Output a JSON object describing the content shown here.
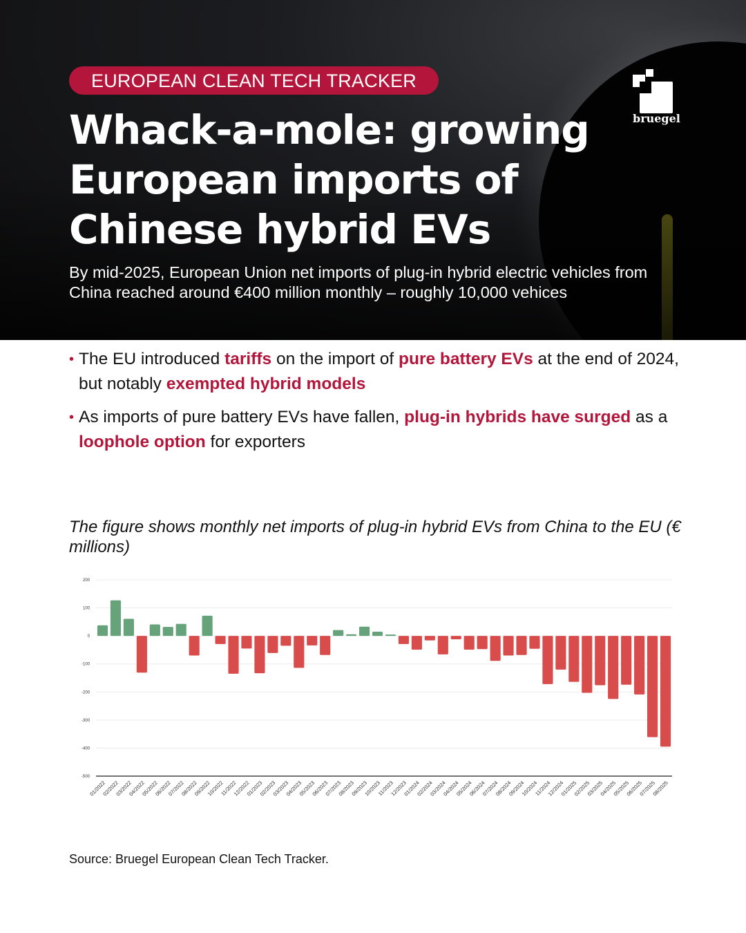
{
  "header": {
    "tag": "EUROPEAN CLEAN TECH TRACKER",
    "title": "Whack-a-mole: growing European imports of Chinese hybrid EVs",
    "subtitle": "By mid-2025, European Union net imports of plug-in hybrid electric vehicles from China reached around €400 million monthly – roughly 10,000 vehices",
    "logo_text": "bruegel"
  },
  "bullets": [
    {
      "parts": [
        "The EU introduced ",
        "tariffs",
        " on the import of ",
        "pure battery EVs",
        " at the end of 2024, but notably ",
        "exempted hybrid models",
        ""
      ]
    },
    {
      "parts": [
        "As imports of pure battery EVs have fallen, ",
        "plug-in hybrids have surged",
        " as a ",
        "loophole option",
        " for exporters"
      ]
    }
  ],
  "caption": "The figure shows monthly net imports of plug-in hybrid EVs from China to the EU (€ millions)",
  "source": "Source: Bruegel European Clean Tech Tracker.",
  "colors": {
    "accent": "#b3163a",
    "positive": "#67a37a",
    "negative": "#d94c4c"
  },
  "chart_data": {
    "type": "bar",
    "title": "",
    "xlabel": "",
    "ylabel": "",
    "ylim": [
      -500,
      200
    ],
    "yticks": [
      200,
      100,
      0,
      -100,
      -200,
      -300,
      -400,
      -500
    ],
    "grid": true,
    "categories": [
      "01/2022",
      "02/2022",
      "03/2022",
      "04/2022",
      "05/2022",
      "06/2022",
      "07/2022",
      "08/2022",
      "09/2022",
      "10/2022",
      "11/2022",
      "12/2022",
      "01/2023",
      "02/2023",
      "03/2023",
      "04/2023",
      "05/2023",
      "06/2023",
      "07/2023",
      "08/2023",
      "09/2023",
      "10/2023",
      "11/2023",
      "12/2023",
      "01/2024",
      "02/2024",
      "03/2024",
      "04/2024",
      "05/2024",
      "06/2024",
      "07/2024",
      "08/2024",
      "09/2024",
      "10/2024",
      "11/2024",
      "12/2024",
      "01/2025",
      "02/2025",
      "03/2025",
      "04/2025",
      "05/2025",
      "06/2025",
      "07/2025",
      "08/2025"
    ],
    "values": [
      38,
      127,
      61,
      -131,
      41,
      32,
      43,
      -70,
      72,
      -29,
      -135,
      -45,
      -133,
      -61,
      -35,
      -114,
      -34,
      -68,
      21,
      6,
      33,
      15,
      5,
      -29,
      -49,
      -16,
      -66,
      -12,
      -49,
      -47,
      -89,
      -70,
      -68,
      -46,
      -172,
      -120,
      -164,
      -203,
      -176,
      -225,
      -174,
      -209,
      -361,
      -395
    ]
  }
}
